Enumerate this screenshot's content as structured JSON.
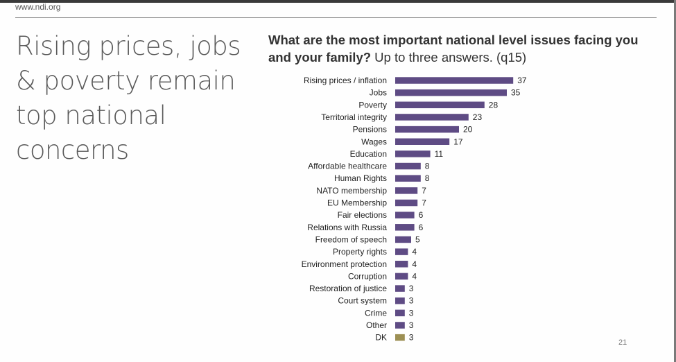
{
  "header": {
    "url": "www.ndi.org"
  },
  "headline": "Rising prices, jobs & poverty remain top national concerns",
  "page_number": "21",
  "chart_data": {
    "type": "bar",
    "orientation": "horizontal",
    "title_bold": "What are the most important national level issues facing you and your family?",
    "title_regular": "Up to three answers. (q15)",
    "categories": [
      "Rising prices / inflation",
      "Jobs",
      "Poverty",
      "Territorial integrity",
      "Pensions",
      "Wages",
      "Education",
      "Affordable healthcare",
      "Human Rights",
      "NATO membership",
      "EU Membership",
      "Fair elections",
      "Relations with Russia",
      "Freedom of speech",
      "Property rights",
      "Environment protection",
      "Corruption",
      "Restoration of justice",
      "Court system",
      "Crime",
      "Other",
      "DK"
    ],
    "values": [
      37,
      35,
      28,
      23,
      20,
      17,
      11,
      8,
      8,
      7,
      7,
      6,
      6,
      5,
      4,
      4,
      4,
      3,
      3,
      3,
      3,
      3
    ],
    "bar_color": "#5e4b84",
    "dk_color": "#9c8f53",
    "data_labels": true,
    "grid": false,
    "legend": "none"
  }
}
